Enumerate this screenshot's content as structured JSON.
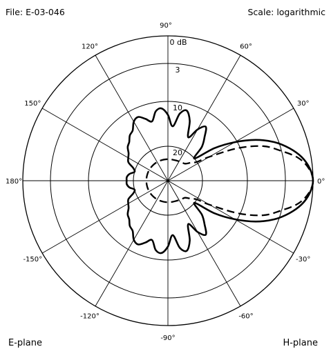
{
  "header": {
    "file_label": "File:  E-03-046",
    "scale_label": "Scale: logarithmic"
  },
  "footer": {
    "left_label": "E-plane",
    "right_label": "H-plane"
  },
  "chart_data": {
    "type": "polar",
    "angle_unit": "deg",
    "angle_ticks": [
      0,
      30,
      60,
      90,
      120,
      150,
      180,
      -150,
      -120,
      -90,
      -60,
      -30
    ],
    "angle_tick_labels": [
      "0°",
      "30°",
      "60°",
      "90°",
      "120°",
      "150°",
      "180°",
      "-150°",
      "-120°",
      "-90°",
      "-60°",
      "-30°"
    ],
    "radial_ticks": [
      0,
      3,
      10,
      20
    ],
    "radial_tick_labels": [
      "0  dB",
      "3",
      "10",
      "20"
    ],
    "radial_scale": "logarithmic",
    "grid": true,
    "series": [
      {
        "line_style": "solid",
        "points": [
          [
            0,
            0
          ],
          [
            5,
            0.3
          ],
          [
            10,
            1
          ],
          [
            15,
            2.1
          ],
          [
            20,
            3.8
          ],
          [
            25,
            6.8
          ],
          [
            30,
            10.5
          ],
          [
            35,
            15
          ],
          [
            40,
            20
          ],
          [
            45,
            17
          ],
          [
            50,
            15
          ],
          [
            55,
            13
          ],
          [
            60,
            14.5
          ],
          [
            65,
            17
          ],
          [
            70,
            13.5
          ],
          [
            75,
            11.5
          ],
          [
            80,
            12.5
          ],
          [
            85,
            15.5
          ],
          [
            90,
            13
          ],
          [
            95,
            11.5
          ],
          [
            100,
            12
          ],
          [
            105,
            14
          ],
          [
            110,
            13
          ],
          [
            115,
            12
          ],
          [
            120,
            12.5
          ],
          [
            125,
            14
          ],
          [
            130,
            14.5
          ],
          [
            135,
            15.5
          ],
          [
            140,
            16
          ],
          [
            145,
            17
          ],
          [
            150,
            17.5
          ],
          [
            155,
            18
          ],
          [
            160,
            19.5
          ],
          [
            165,
            20
          ],
          [
            170,
            19
          ],
          [
            175,
            18.5
          ],
          [
            180,
            18.5
          ],
          [
            -175,
            18.5
          ],
          [
            -170,
            19
          ],
          [
            -165,
            20
          ],
          [
            -160,
            19.5
          ],
          [
            -155,
            18
          ],
          [
            -150,
            17.5
          ],
          [
            -145,
            17
          ],
          [
            -140,
            16
          ],
          [
            -135,
            15.5
          ],
          [
            -130,
            14.5
          ],
          [
            -125,
            14
          ],
          [
            -120,
            12.5
          ],
          [
            -115,
            12
          ],
          [
            -110,
            13
          ],
          [
            -105,
            14
          ],
          [
            -100,
            12
          ],
          [
            -95,
            11.5
          ],
          [
            -90,
            13
          ],
          [
            -85,
            15.5
          ],
          [
            -80,
            12.5
          ],
          [
            -75,
            11.5
          ],
          [
            -70,
            13.5
          ],
          [
            -65,
            17
          ],
          [
            -60,
            14.5
          ],
          [
            -55,
            13
          ],
          [
            -50,
            15
          ],
          [
            -45,
            17
          ],
          [
            -40,
            20
          ],
          [
            -35,
            15
          ],
          [
            -30,
            10.5
          ],
          [
            -25,
            6.8
          ],
          [
            -20,
            3.8
          ],
          [
            -15,
            2.1
          ],
          [
            -10,
            1
          ],
          [
            -5,
            0.3
          ]
        ]
      },
      {
        "line_style": "dashed",
        "points": [
          [
            0,
            0
          ],
          [
            5,
            0.4
          ],
          [
            10,
            1.4
          ],
          [
            15,
            3.2
          ],
          [
            20,
            6
          ],
          [
            25,
            10.5
          ],
          [
            30,
            17
          ],
          [
            33,
            20
          ],
          [
            38,
            23
          ],
          [
            45,
            26
          ],
          [
            60,
            27
          ],
          [
            90,
            27.5
          ],
          [
            120,
            27.5
          ],
          [
            150,
            27.5
          ],
          [
            180,
            27.5
          ],
          [
            -150,
            27.5
          ],
          [
            -120,
            27.5
          ],
          [
            -90,
            27.5
          ],
          [
            -60,
            27
          ],
          [
            -45,
            26
          ],
          [
            -38,
            23
          ],
          [
            -33,
            20
          ],
          [
            -30,
            17
          ],
          [
            -25,
            10.5
          ],
          [
            -20,
            6
          ],
          [
            -15,
            3.2
          ],
          [
            -10,
            1.4
          ],
          [
            -5,
            0.4
          ]
        ]
      }
    ]
  }
}
